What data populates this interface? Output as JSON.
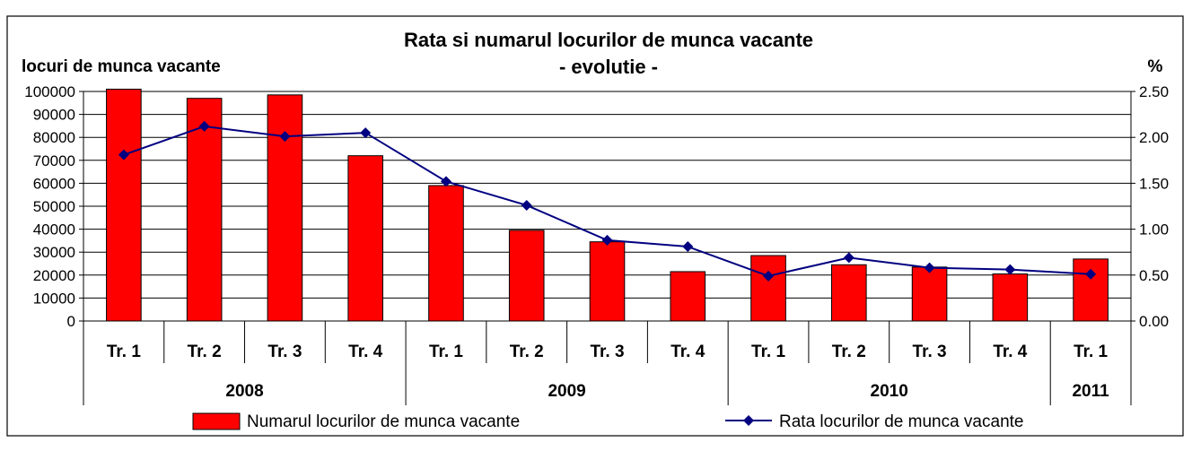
{
  "chart_data": {
    "type": "bar",
    "title": "Rata si numarul locurilor de munca vacante",
    "subtitle": "- evolutie -",
    "ylabel_left": "locuri de munca vacante",
    "ylabel_right": "%",
    "ylim_left": [
      0,
      100000
    ],
    "ylim_right": [
      0,
      2.5
    ],
    "left_ticks": [
      "0",
      "10000",
      "20000",
      "30000",
      "40000",
      "50000",
      "60000",
      "70000",
      "80000",
      "90000",
      "100000"
    ],
    "right_ticks": [
      "0.00",
      "0.50",
      "1.00",
      "1.50",
      "2.00",
      "2.50"
    ],
    "categories": [
      "Tr. 1",
      "Tr. 2",
      "Tr. 3",
      "Tr. 4",
      "Tr. 1",
      "Tr. 2",
      "Tr. 3",
      "Tr. 4",
      "Tr. 1",
      "Tr. 2",
      "Tr. 3",
      "Tr. 4",
      "Tr. 1"
    ],
    "groups": [
      {
        "label": "2008",
        "count": 4
      },
      {
        "label": "2009",
        "count": 4
      },
      {
        "label": "2010",
        "count": 4
      },
      {
        "label": "2011",
        "count": 1
      }
    ],
    "series": [
      {
        "name": "Numarul locurilor de munca vacante",
        "type": "bar",
        "axis": "left",
        "color": "#ff0000",
        "values": [
          101000,
          97000,
          98500,
          72000,
          59000,
          39500,
          34500,
          21500,
          28500,
          24500,
          23500,
          20500,
          27000
        ]
      },
      {
        "name": "Rata locurilor de munca vacante",
        "type": "line",
        "axis": "right",
        "color": "#000080",
        "marker": "diamond",
        "values": [
          1.81,
          2.12,
          2.01,
          2.05,
          1.52,
          1.26,
          0.88,
          0.81,
          0.49,
          0.69,
          0.58,
          0.56,
          0.51
        ]
      }
    ],
    "grid": true,
    "legend_position": "bottom"
  }
}
